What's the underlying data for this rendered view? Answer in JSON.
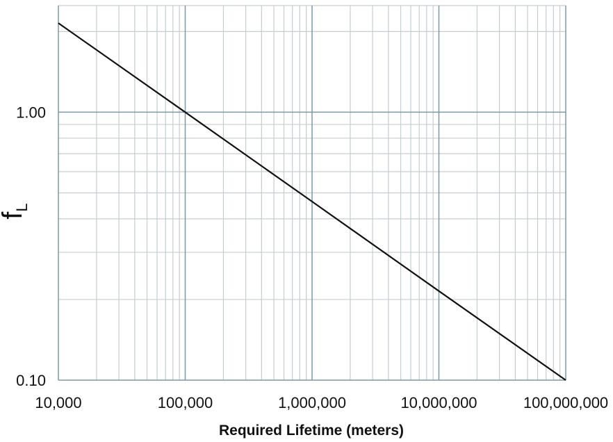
{
  "chart_data": {
    "type": "line",
    "xlabel": "Required Lifetime (meters)",
    "ylabel": {
      "main": "f",
      "subscript": "L"
    },
    "xscale": "log",
    "yscale": "log",
    "xlim": [
      10000,
      100000000
    ],
    "ylim": [
      0.1,
      2.5
    ],
    "grid": true,
    "colors": {
      "line": "#111111",
      "major_grid": "#7a9aa6",
      "minor_grid": "#c5cdd1",
      "text": "#111111"
    },
    "x_ticks": [
      {
        "value": 10000,
        "label": "10,000"
      },
      {
        "value": 100000,
        "label": "100,000"
      },
      {
        "value": 1000000,
        "label": "1,000,000"
      },
      {
        "value": 10000000,
        "label": "10,000,000"
      },
      {
        "value": 100000000,
        "label": "100,000,000"
      }
    ],
    "y_ticks": [
      {
        "value": 1.0,
        "label": "1.00"
      },
      {
        "value": 0.1,
        "label": "0.10"
      }
    ],
    "series": [
      {
        "x": [
          10000,
          100000,
          1000000,
          10000000,
          100000000
        ],
        "y": [
          2.15,
          1.0,
          0.464,
          0.215,
          0.1
        ]
      }
    ]
  }
}
